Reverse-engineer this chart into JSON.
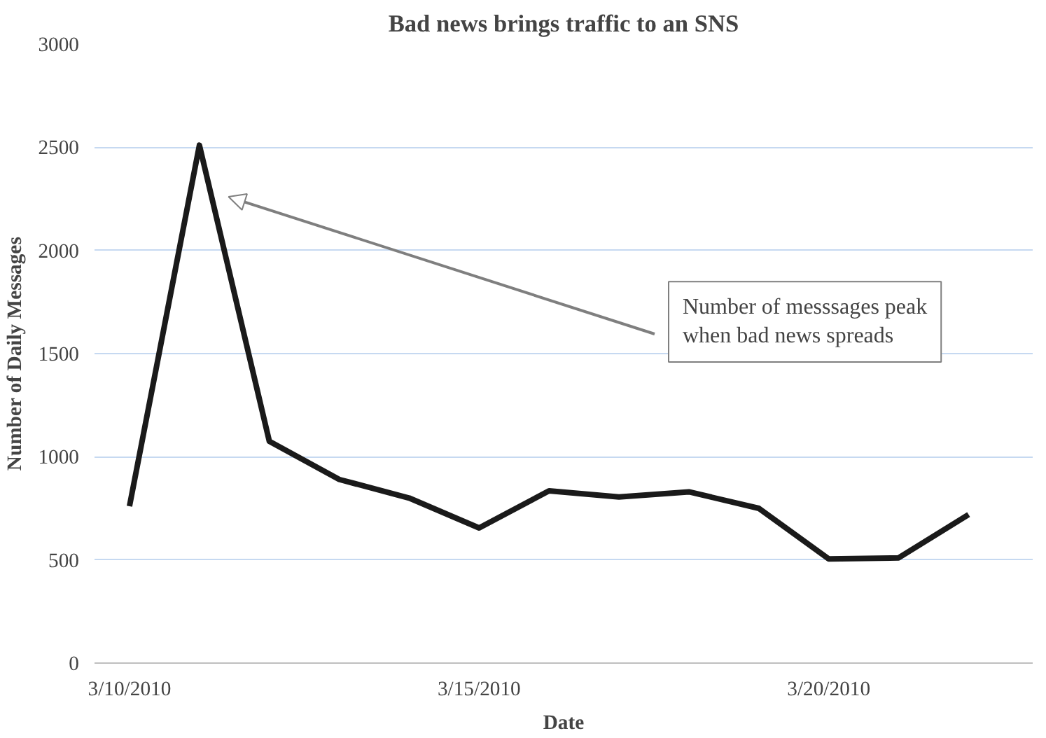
{
  "chart_data": {
    "type": "line",
    "title": "Bad news brings traffic to an SNS",
    "xlabel": "Date",
    "ylabel": "Number of Daily Messages",
    "x": [
      "2010-03-10",
      "2010-03-11",
      "2010-03-12",
      "2010-03-13",
      "2010-03-14",
      "2010-03-15",
      "2010-03-16",
      "2010-03-17",
      "2010-03-18",
      "2010-03-19",
      "2010-03-20",
      "2010-03-21",
      "2010-03-22"
    ],
    "series": [
      {
        "color": "#1a1a1a",
        "values": [
          760,
          2510,
          1075,
          890,
          800,
          655,
          835,
          805,
          830,
          750,
          505,
          510,
          720
        ]
      }
    ],
    "xlim": [
      "2010-03-09T12:00",
      "2010-03-22T22:00"
    ],
    "xticks": [
      {
        "value": "2010-03-10",
        "label": "3/10/2010"
      },
      {
        "value": "2010-03-15",
        "label": "3/15/2010"
      },
      {
        "value": "2010-03-20",
        "label": "3/20/2010"
      }
    ],
    "ylim": [
      0,
      3000
    ],
    "yticks": [
      0,
      500,
      1000,
      1500,
      2000,
      2500,
      3000
    ],
    "grid": "y",
    "marker": "none",
    "line_style": "solid",
    "annotations": [
      "Number of messsages peak\nwhen bad news spreads"
    ]
  }
}
